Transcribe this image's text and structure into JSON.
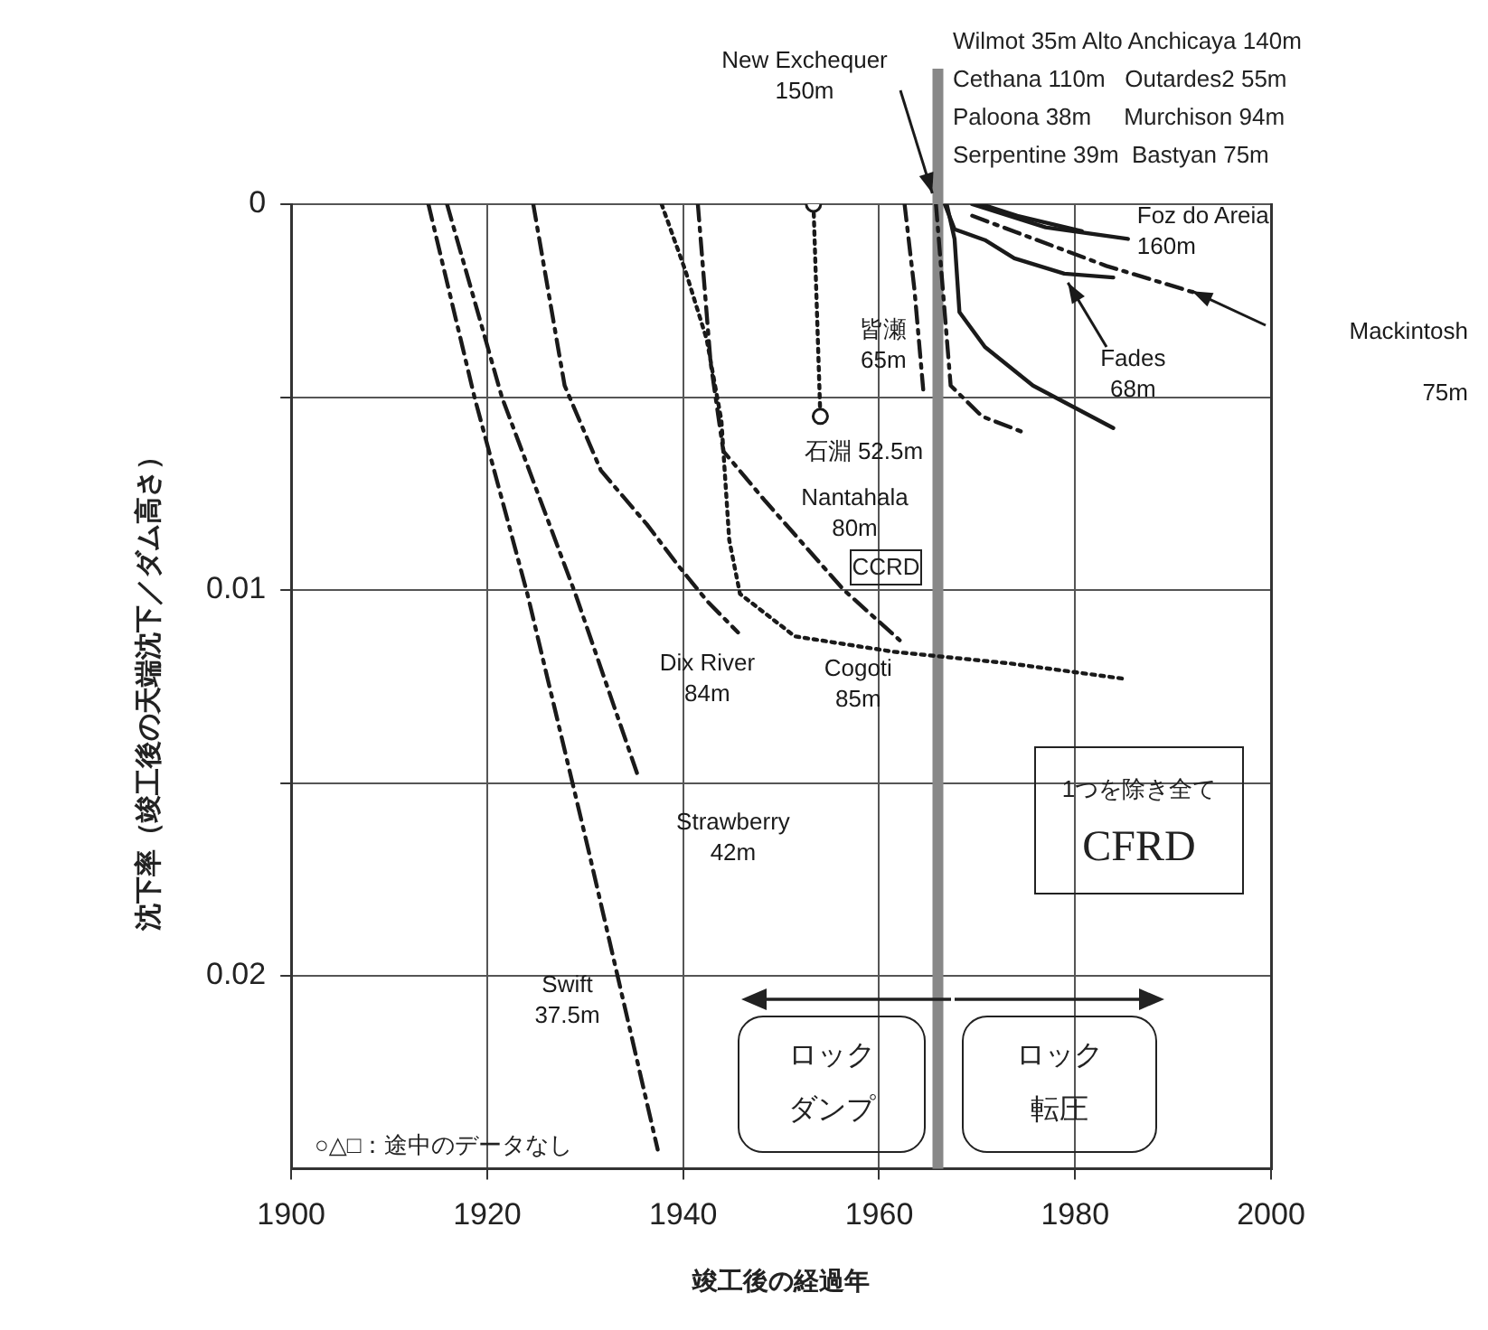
{
  "chart_data": {
    "type": "line",
    "xlabel": "竣工後の経過年",
    "ylabel": "沈下率（竣工後の天端沈下／ダム高さ）",
    "xlim": [
      1900,
      2000
    ],
    "xticks": [
      1900,
      1920,
      1940,
      1960,
      1980,
      2000
    ],
    "ylim": [
      0.025,
      0
    ],
    "yticks": [
      0,
      {
        "value": 0.005,
        "label": null
      },
      0.01,
      {
        "value": 0.015,
        "label": null
      },
      0.02
    ],
    "grid": true,
    "legend": false,
    "series": [
      {
        "name": "Swift\n37.5m",
        "color": "#1a1a1a",
        "line_style": "dashed",
        "x": [
          1914.0,
          1918.7,
          1924.1,
          1930.3,
          1937.4
        ],
        "values": [
          0,
          0.005,
          0.0101,
          0.0167,
          0.0245
        ]
      },
      {
        "name": "Strawberry\n42m",
        "color": "#1a1a1a",
        "line_style": "dashed",
        "x": [
          1915.9,
          1921.5,
          1929.0,
          1935.5
        ],
        "values": [
          0,
          0.005,
          0.0101,
          0.0149
        ]
      },
      {
        "name": "Dix River\n84m",
        "color": "#1a1a1a",
        "line_style": "dashed",
        "x": [
          1924.7,
          1927.9,
          1931.6,
          1936.3,
          1939.6,
          1942.5,
          1945.6
        ],
        "values": [
          0,
          0.0047,
          0.0069,
          0.0083,
          0.0094,
          0.0103,
          0.0111
        ]
      },
      {
        "name": "Cogoti\n85m",
        "color": "#1a1a1a",
        "line_style": "dotted",
        "x": [
          1937.8,
          1940.2,
          1942.4,
          1943.9,
          1944.7,
          1945.8,
          1951.4,
          1961.5,
          1973.3,
          1985.0
        ],
        "values": [
          0,
          0.0017,
          0.0035,
          0.0056,
          0.0087,
          0.0101,
          0.0112,
          0.0116,
          0.0119,
          0.0123
        ]
      },
      {
        "name": "Nantahala\n80m",
        "color": "#1a1a1a",
        "line_style": "dashed",
        "x": [
          1941.5,
          1942.8,
          1944.1,
          1948.4,
          1956.4,
          1962.1
        ],
        "values": [
          0,
          0.0041,
          0.0064,
          0.0077,
          0.01,
          0.0113
        ]
      },
      {
        "name": "石淵 52.5m",
        "color": "#1a1a1a",
        "line_style": "dotted",
        "marker": "circle",
        "x": [
          1953.3,
          1954.0
        ],
        "values": [
          0,
          0.0055
        ]
      },
      {
        "name": "皆瀬\n65m",
        "color": "#1a1a1a",
        "line_style": "dashed",
        "x": [
          1962.6,
          1963.6,
          1964.5
        ],
        "values": [
          0,
          0.0022,
          0.0048
        ]
      },
      {
        "name": "New Exchequer\n150m",
        "color": "#1a1a1a",
        "line_style": "dashed",
        "x": [
          1965.8,
          1966.5,
          1967.3,
          1970.5,
          1974.6
        ],
        "values": [
          0,
          0.0022,
          0.0047,
          0.0055,
          0.0059
        ]
      },
      {
        "color": "#1a1a1a",
        "line_style": "solid",
        "x": [
          1966.9,
          1967.7,
          1968.2,
          1970.8,
          1975.7,
          1983.9
        ],
        "values": [
          0,
          0.0009,
          0.0028,
          0.0037,
          0.0047,
          0.0058
        ]
      },
      {
        "name": "Fades\n68m",
        "color": "#1a1a1a",
        "line_style": "solid",
        "x": [
          1966.7,
          1967.7,
          1970.8,
          1973.8,
          1978.9,
          1983.9
        ],
        "values": [
          0,
          0.00065,
          0.00093,
          0.0014,
          0.0018,
          0.0019
        ]
      },
      {
        "name": "Mackintosh\n\n75m",
        "color": "#1a1a1a",
        "line_style": "dashed",
        "x": [
          1969.5,
          1983.2,
          1992.3
        ],
        "values": [
          0.0003,
          0.0016,
          0.0023
        ]
      },
      {
        "name": "Foz do Areia\n160m",
        "color": "#1a1a1a",
        "line_style": "solid",
        "x": [
          1969.5,
          1977.0,
          1985.4
        ],
        "values": [
          0,
          0.0006,
          0.0009
        ]
      },
      {
        "color": "#1a1a1a",
        "line_style": "solid",
        "x": [
          1970.4,
          1974.1,
          1980.7
        ],
        "values": [
          0,
          0.0003,
          0.0007
        ]
      }
    ],
    "ref_lines": [
      {
        "axis": "x",
        "value": 1966,
        "color": "#888888"
      }
    ],
    "annotations": [
      "Wilmot 35m Alto Anchicaya 140m\nCethana 110m   Outardes2 55m\nPaloona 38m     Murchison 94m\nSerpentine 39m  Bastyan 75m",
      "CCRD",
      "1つを除き全て",
      "CFRD",
      "○△□：途中のデータなし",
      "ロックダンプ",
      "ロック転圧"
    ]
  }
}
